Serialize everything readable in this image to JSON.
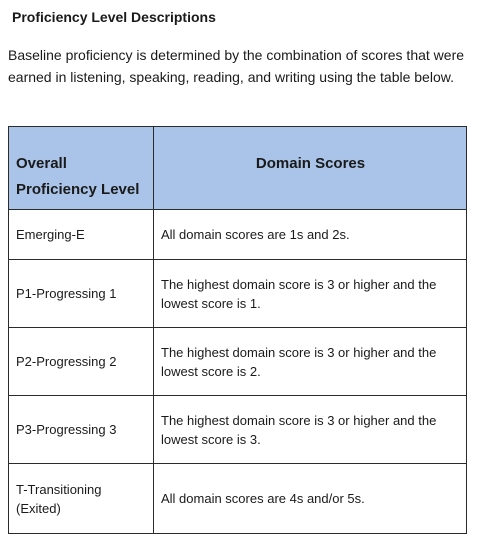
{
  "heading": "Proficiency Level Descriptions",
  "intro": "Baseline proficiency is determined by the combination of scores that were earned in listening, speaking, reading, and writing using the table below.",
  "table": {
    "headers": [
      "Overall Proficiency Level",
      "Domain Scores"
    ],
    "rows": [
      {
        "level": "Emerging-E",
        "scores": "All domain scores are 1s and 2s."
      },
      {
        "level": "P1-Progressing 1",
        "scores": "The highest domain score is 3 or higher and the lowest score is 1."
      },
      {
        "level": "P2-Progressing 2",
        "scores": "The highest domain score is 3 or higher and the lowest score is 2."
      },
      {
        "level": "P3-Progressing 3",
        "scores": "The highest domain score is 3 or higher and the lowest score is 3."
      },
      {
        "level": "T-Transitioning (Exited)",
        "scores": "All domain scores are 4s and/or 5s."
      }
    ]
  },
  "colors": {
    "header_background": "#a9c4e8",
    "border": "#2b2b2b",
    "text": "#1a1a1a"
  }
}
